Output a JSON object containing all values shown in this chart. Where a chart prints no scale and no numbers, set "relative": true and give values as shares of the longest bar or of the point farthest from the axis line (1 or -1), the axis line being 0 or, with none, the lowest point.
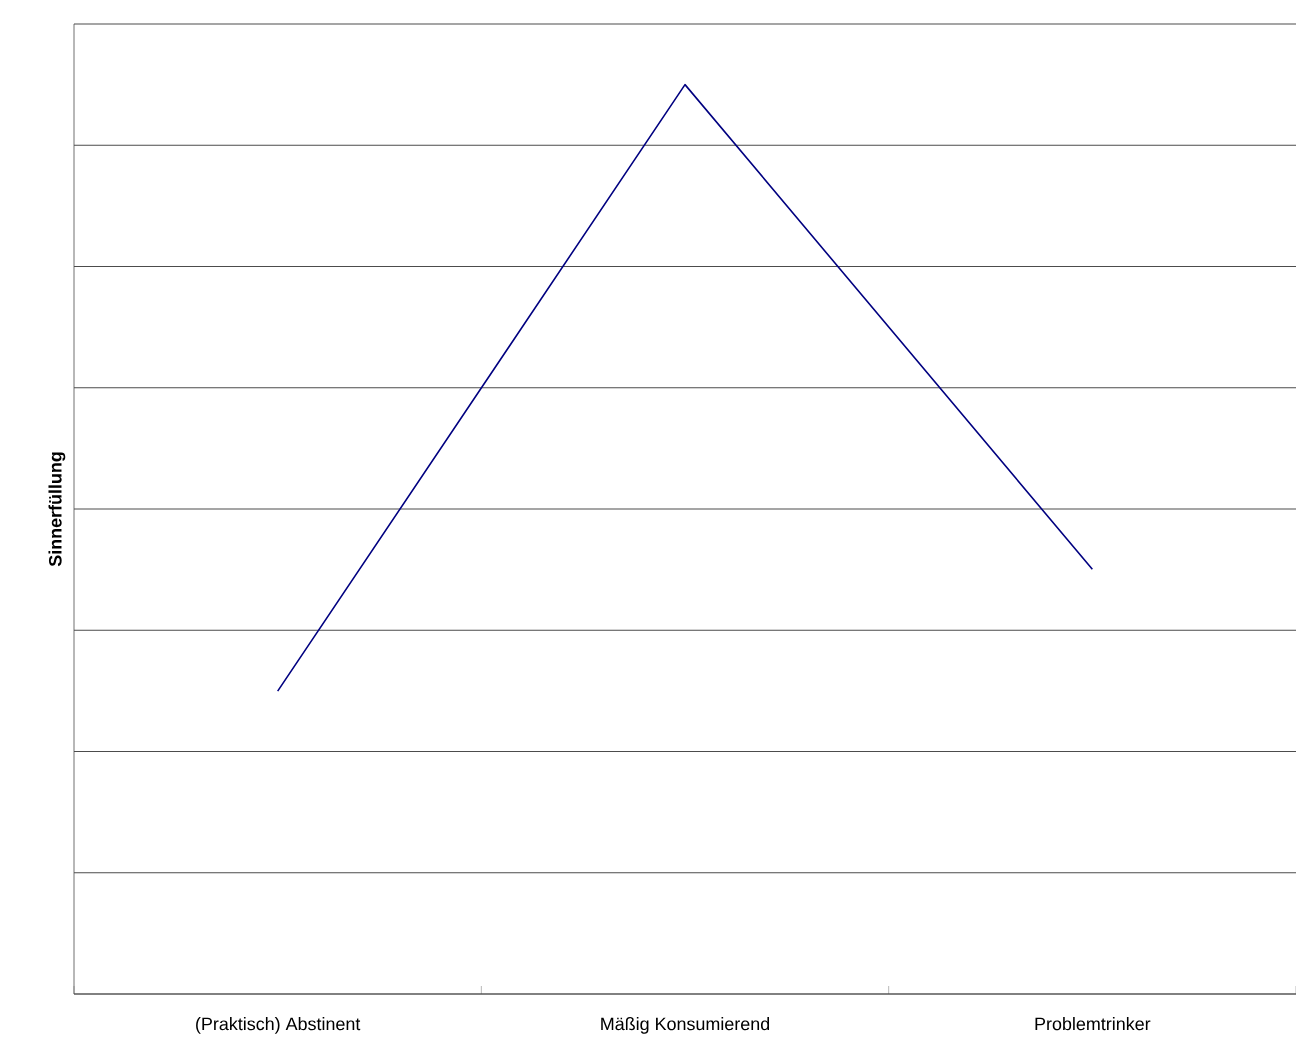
{
  "chart_data": {
    "type": "line",
    "ylabel": "Sinnerfüllung",
    "categories": [
      "(Praktisch) Abstinent",
      "Mäßig Konsumierend",
      "Problemtrinker"
    ],
    "series": [
      {
        "color": "#000080",
        "values": [
          0.333,
          1,
          0.467
        ]
      }
    ],
    "relative": true,
    "grid": "y",
    "marker": "none",
    "line_style": "solid"
  }
}
